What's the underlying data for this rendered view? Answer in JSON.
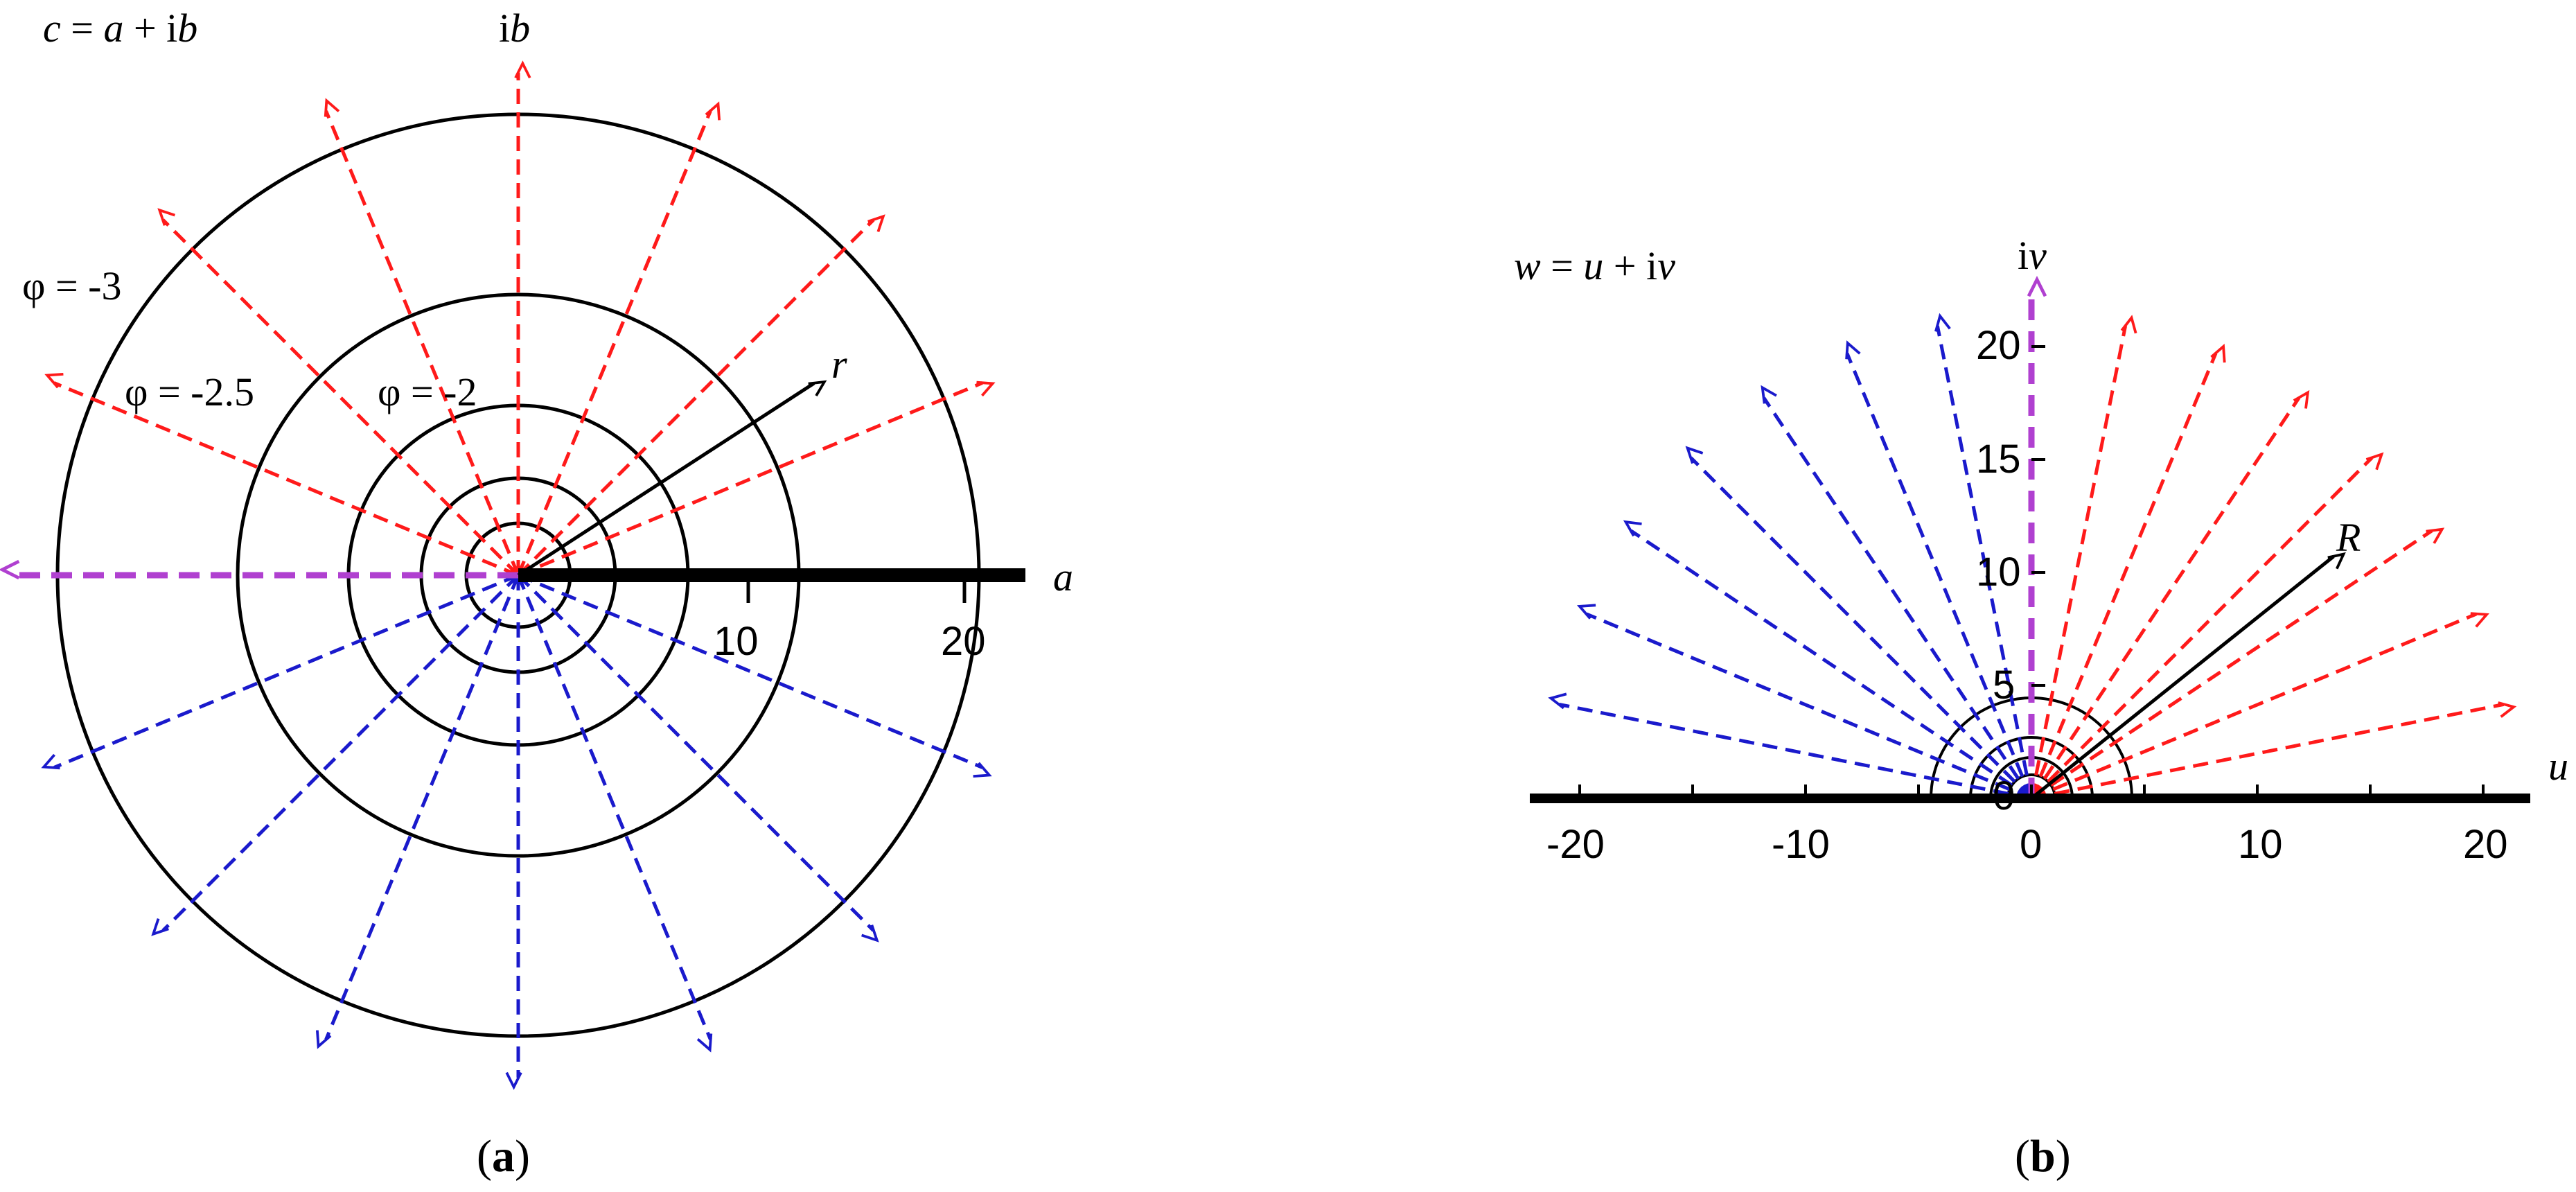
{
  "colors": {
    "red_ray": "#ff1a1a",
    "blue_ray": "#1a1acc",
    "purple_ray": "#b040d0",
    "axis": "#000000",
    "circle": "#000000"
  },
  "panel_a": {
    "equation": {
      "lhs": "c",
      "eq": " = ",
      "var1": "a",
      "plus": " + i",
      "var2": "b"
    },
    "imag_axis": {
      "prefix": "i",
      "var": "b"
    },
    "real_axis": "a",
    "radius_label": "r",
    "phi_labels": [
      "φ = -3",
      "φ = -2.5",
      "φ = -2"
    ],
    "ticks": [
      "10",
      "20"
    ],
    "caption": {
      "open": "(",
      "letter": "a",
      "close": ")"
    }
  },
  "panel_b": {
    "equation": {
      "lhs": "w",
      "eq": " = ",
      "var1": "u",
      "plus": " + i",
      "var2": "v"
    },
    "imag_axis": {
      "prefix": "i",
      "var": "v"
    },
    "real_axis": "u",
    "radius_label": "R",
    "x_ticks": [
      "-20",
      "-10",
      "0",
      "10",
      "20"
    ],
    "y_ticks": [
      "0",
      "5",
      "10",
      "15",
      "20"
    ],
    "caption": {
      "open": "(",
      "letter": "b",
      "close": ")"
    }
  }
}
